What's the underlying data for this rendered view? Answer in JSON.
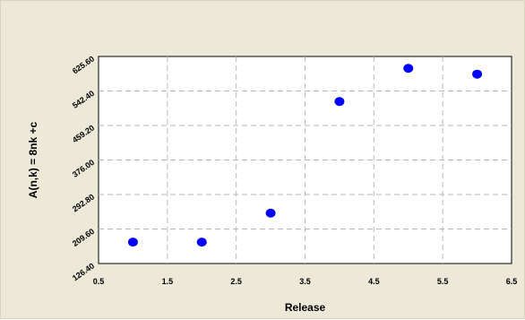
{
  "chart_data": {
    "type": "scatter",
    "xlabel": "Release",
    "ylabel": "A(n,k) = 8nk +c",
    "xlim": [
      0.5,
      6.5
    ],
    "ylim": [
      126.4,
      625.6
    ],
    "x_ticks": [
      "0.5",
      "1.5",
      "2.5",
      "3.5",
      "4.5",
      "5.5",
      "6.5"
    ],
    "x_tick_values": [
      0.5,
      1.5,
      2.5,
      3.5,
      4.5,
      5.5,
      6.5
    ],
    "y_ticks": [
      "126.40",
      "209.60",
      "292.80",
      "376.00",
      "459.20",
      "542.40",
      "625.60"
    ],
    "y_tick_values": [
      126.4,
      209.6,
      292.8,
      376.0,
      459.2,
      542.4,
      625.6
    ],
    "grid": true,
    "point_color": "#0000ff",
    "grid_color": "#b8b8b8",
    "points": [
      {
        "x": 1,
        "y": 178
      },
      {
        "x": 2,
        "y": 178
      },
      {
        "x": 3,
        "y": 248
      },
      {
        "x": 4,
        "y": 517
      },
      {
        "x": 5,
        "y": 597
      },
      {
        "x": 6,
        "y": 583
      }
    ]
  }
}
